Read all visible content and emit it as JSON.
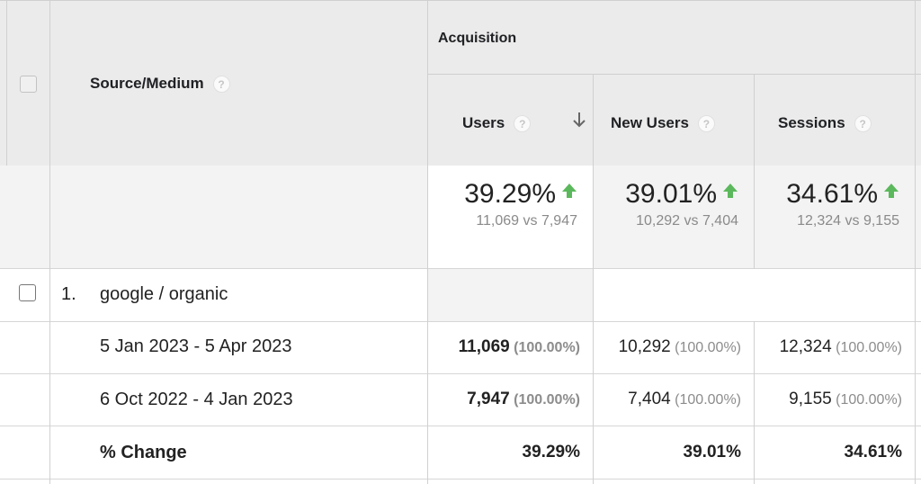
{
  "header": {
    "source_medium_label": "Source/Medium",
    "acquisition_label": "Acquisition",
    "help_glyph": "?",
    "columns": [
      {
        "label": "Users",
        "sort_icon": "arrow-down-icon"
      },
      {
        "label": "New Users"
      },
      {
        "label": "Sessions"
      }
    ]
  },
  "totals": [
    {
      "change": "39.29%",
      "comparison": "11,069 vs 7,947"
    },
    {
      "change": "39.01%",
      "comparison": "10,292 vs 7,404"
    },
    {
      "change": "34.61%",
      "comparison": "12,324 vs 9,155"
    }
  ],
  "colors": {
    "up_arrow": "#5cb85c",
    "header_bg": "#ebebeb",
    "selected_col_bg": "#f3f3f3"
  },
  "rows": [
    {
      "index": "1.",
      "name": "google / organic",
      "sub_rows": [
        {
          "label": "5 Jan 2023 - 5 Apr 2023",
          "cells": [
            {
              "value": "11,069",
              "share": "(100.00%)"
            },
            {
              "value": "10,292",
              "share": "(100.00%)"
            },
            {
              "value": "12,324",
              "share": "(100.00%)"
            }
          ]
        },
        {
          "label": "6 Oct 2022 - 4 Jan 2023",
          "cells": [
            {
              "value": "7,947",
              "share": "(100.00%)"
            },
            {
              "value": "7,404",
              "share": "(100.00%)"
            },
            {
              "value": "9,155",
              "share": "(100.00%)"
            }
          ]
        }
      ],
      "change_row": {
        "label": "% Change",
        "values": [
          "39.29%",
          "39.01%",
          "34.61%"
        ]
      }
    }
  ]
}
